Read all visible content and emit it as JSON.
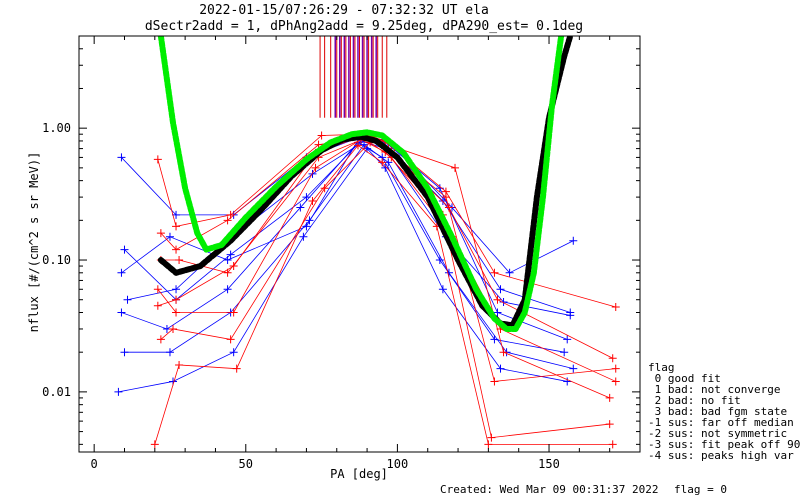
{
  "chart_data": {
    "type": "scatter",
    "title": "2022-01-15/07:26:29 - 07:32:32 UT ela",
    "subtitle": "dSectr2add = 1, dPhAng2add = 9.25deg, dPA290_est=   0.1deg",
    "xlabel": "PA [deg]",
    "ylabel": "nflux [#/(cm^2 s sr MeV)]",
    "xlim": [
      -5,
      180
    ],
    "ylim": [
      0.0035,
      5
    ],
    "yscale": "log",
    "x_ticks": [
      "0",
      "50",
      "100",
      "150"
    ],
    "y_ticks": [
      "1.00",
      "0.10",
      "0.01"
    ],
    "grid": false,
    "footer": "Created: Wed Mar 09 00:31:37 2022",
    "flag_text": "flag = 0",
    "legend": {
      "title": "flag",
      "entries": [
        " 0 good fit",
        " 1 bad: not converge",
        " 2 bad: no fit",
        " 3 bad: bad fgm state",
        "-1 sus: far off median",
        "-2 sus: not symmetric",
        "-3 sus: fit peak off 90",
        "-4 sus: peaks high var"
      ]
    },
    "colors": {
      "sector_a": "#0000ff",
      "sector_b": "#ff0000",
      "fit_black": "#000000",
      "fit_green": "#00ee00",
      "marker_a": "#7700aa",
      "marker_b": "#dd0000"
    },
    "series": [
      {
        "color": "#000000",
        "x": [
          22,
          27,
          35,
          45,
          55,
          65,
          75,
          82,
          88,
          93,
          100,
          110,
          120,
          128,
          134,
          138,
          142,
          146,
          150,
          155,
          157
        ],
        "y": [
          0.1,
          0.08,
          0.09,
          0.14,
          0.24,
          0.43,
          0.68,
          0.82,
          0.86,
          0.8,
          0.6,
          0.3,
          0.1,
          0.045,
          0.033,
          0.032,
          0.05,
          0.3,
          1.2,
          3.5,
          5
        ]
      },
      {
        "color": "#00ee00",
        "x": [
          22,
          26,
          30,
          34,
          37,
          42,
          50,
          60,
          70,
          78,
          85,
          90,
          95,
          102,
          110,
          118,
          126,
          132,
          136,
          139,
          142,
          145,
          148,
          151,
          154
        ],
        "y": [
          5,
          1.1,
          0.35,
          0.16,
          0.12,
          0.13,
          0.21,
          0.36,
          0.58,
          0.78,
          0.9,
          0.93,
          0.88,
          0.65,
          0.35,
          0.15,
          0.06,
          0.036,
          0.03,
          0.03,
          0.04,
          0.08,
          0.3,
          1.5,
          5
        ]
      }
    ],
    "samples": [
      {
        "color": "#0000ff",
        "x": [
          9,
          27,
          46,
          70,
          88,
          95,
          115,
          134,
          157
        ],
        "y": [
          0.6,
          0.22,
          0.22,
          0.6,
          0.86,
          0.8,
          0.28,
          0.06,
          0.04
        ]
      },
      {
        "color": "#0000ff",
        "x": [
          10,
          27,
          45,
          70,
          88,
          96,
          116,
          135,
          157
        ],
        "y": [
          0.12,
          0.05,
          0.11,
          0.3,
          0.8,
          0.7,
          0.15,
          0.048,
          0.038
        ]
      },
      {
        "color": "#0000ff",
        "x": [
          9,
          24,
          44,
          68,
          87,
          95,
          114,
          132,
          155
        ],
        "y": [
          0.04,
          0.03,
          0.06,
          0.25,
          0.78,
          0.6,
          0.1,
          0.025,
          0.02
        ]
      },
      {
        "color": "#0000ff",
        "x": [
          10,
          25,
          45,
          71,
          89,
          97,
          117,
          136,
          158
        ],
        "y": [
          0.02,
          0.02,
          0.04,
          0.2,
          0.75,
          0.55,
          0.08,
          0.02,
          0.015
        ]
      },
      {
        "color": "#0000ff",
        "x": [
          8,
          26,
          46,
          69,
          90,
          96,
          115,
          134,
          156
        ],
        "y": [
          0.01,
          0.012,
          0.02,
          0.15,
          0.7,
          0.5,
          0.06,
          0.015,
          0.012
        ]
      },
      {
        "color": "#0000ff",
        "x": [
          11,
          27,
          47,
          72,
          91,
          98,
          118,
          137,
          158
        ],
        "y": [
          0.05,
          0.06,
          0.16,
          0.45,
          0.85,
          0.75,
          0.25,
          0.08,
          0.14
        ]
      },
      {
        "color": "#0000ff",
        "x": [
          9,
          25,
          44,
          70,
          88,
          95,
          114,
          133,
          156
        ],
        "y": [
          0.08,
          0.15,
          0.1,
          0.18,
          0.88,
          0.82,
          0.35,
          0.04,
          0.025
        ]
      },
      {
        "color": "#ff0000",
        "x": [
          21,
          27,
          45,
          75,
          89,
          96,
          116,
          132,
          172
        ],
        "y": [
          0.58,
          0.18,
          0.22,
          0.88,
          0.9,
          0.8,
          0.33,
          0.08,
          0.044
        ]
      },
      {
        "color": "#ff0000",
        "x": [
          22,
          28,
          44,
          74,
          90,
          97,
          117,
          133,
          171
        ],
        "y": [
          0.1,
          0.1,
          0.08,
          0.6,
          0.85,
          0.7,
          0.25,
          0.05,
          0.018
        ]
      },
      {
        "color": "#ff0000",
        "x": [
          21,
          27,
          46,
          73,
          88,
          96,
          115,
          131,
          170
        ],
        "y": [
          0.06,
          0.04,
          0.04,
          0.5,
          0.82,
          0.66,
          0.22,
          0.0045,
          0.0057
        ]
      },
      {
        "color": "#ff0000",
        "x": [
          22,
          26,
          45,
          76,
          91,
          98,
          118,
          134,
          172
        ],
        "y": [
          0.025,
          0.03,
          0.025,
          0.35,
          0.78,
          0.6,
          0.15,
          0.03,
          0.012
        ]
      },
      {
        "color": "#ff0000",
        "x": [
          20,
          28,
          47,
          72,
          87,
          95,
          113,
          130,
          171
        ],
        "y": [
          0.004,
          0.016,
          0.015,
          0.28,
          0.74,
          0.55,
          0.18,
          0.004,
          0.004
        ]
      },
      {
        "color": "#ff0000",
        "x": [
          22,
          27,
          44,
          74,
          92,
          99,
          119,
          135,
          170
        ],
        "y": [
          0.16,
          0.12,
          0.2,
          0.75,
          0.86,
          0.72,
          0.5,
          0.02,
          0.009
        ]
      },
      {
        "color": "#ff0000",
        "x": [
          21,
          27,
          46,
          73,
          89,
          97,
          116,
          132,
          172
        ],
        "y": [
          0.045,
          0.05,
          0.09,
          0.65,
          0.88,
          0.68,
          0.3,
          0.012,
          0.015
        ]
      }
    ],
    "marker_ticks": {
      "x_a": [
        79.5,
        81,
        82.5,
        84,
        85.5,
        87,
        88.5,
        90,
        91.5,
        93
      ],
      "x_b": [
        74.5,
        76,
        78,
        80,
        81.5,
        83,
        84.5,
        86,
        87.5,
        89,
        90.5,
        92,
        93.5,
        95,
        96.5
      ]
    }
  }
}
